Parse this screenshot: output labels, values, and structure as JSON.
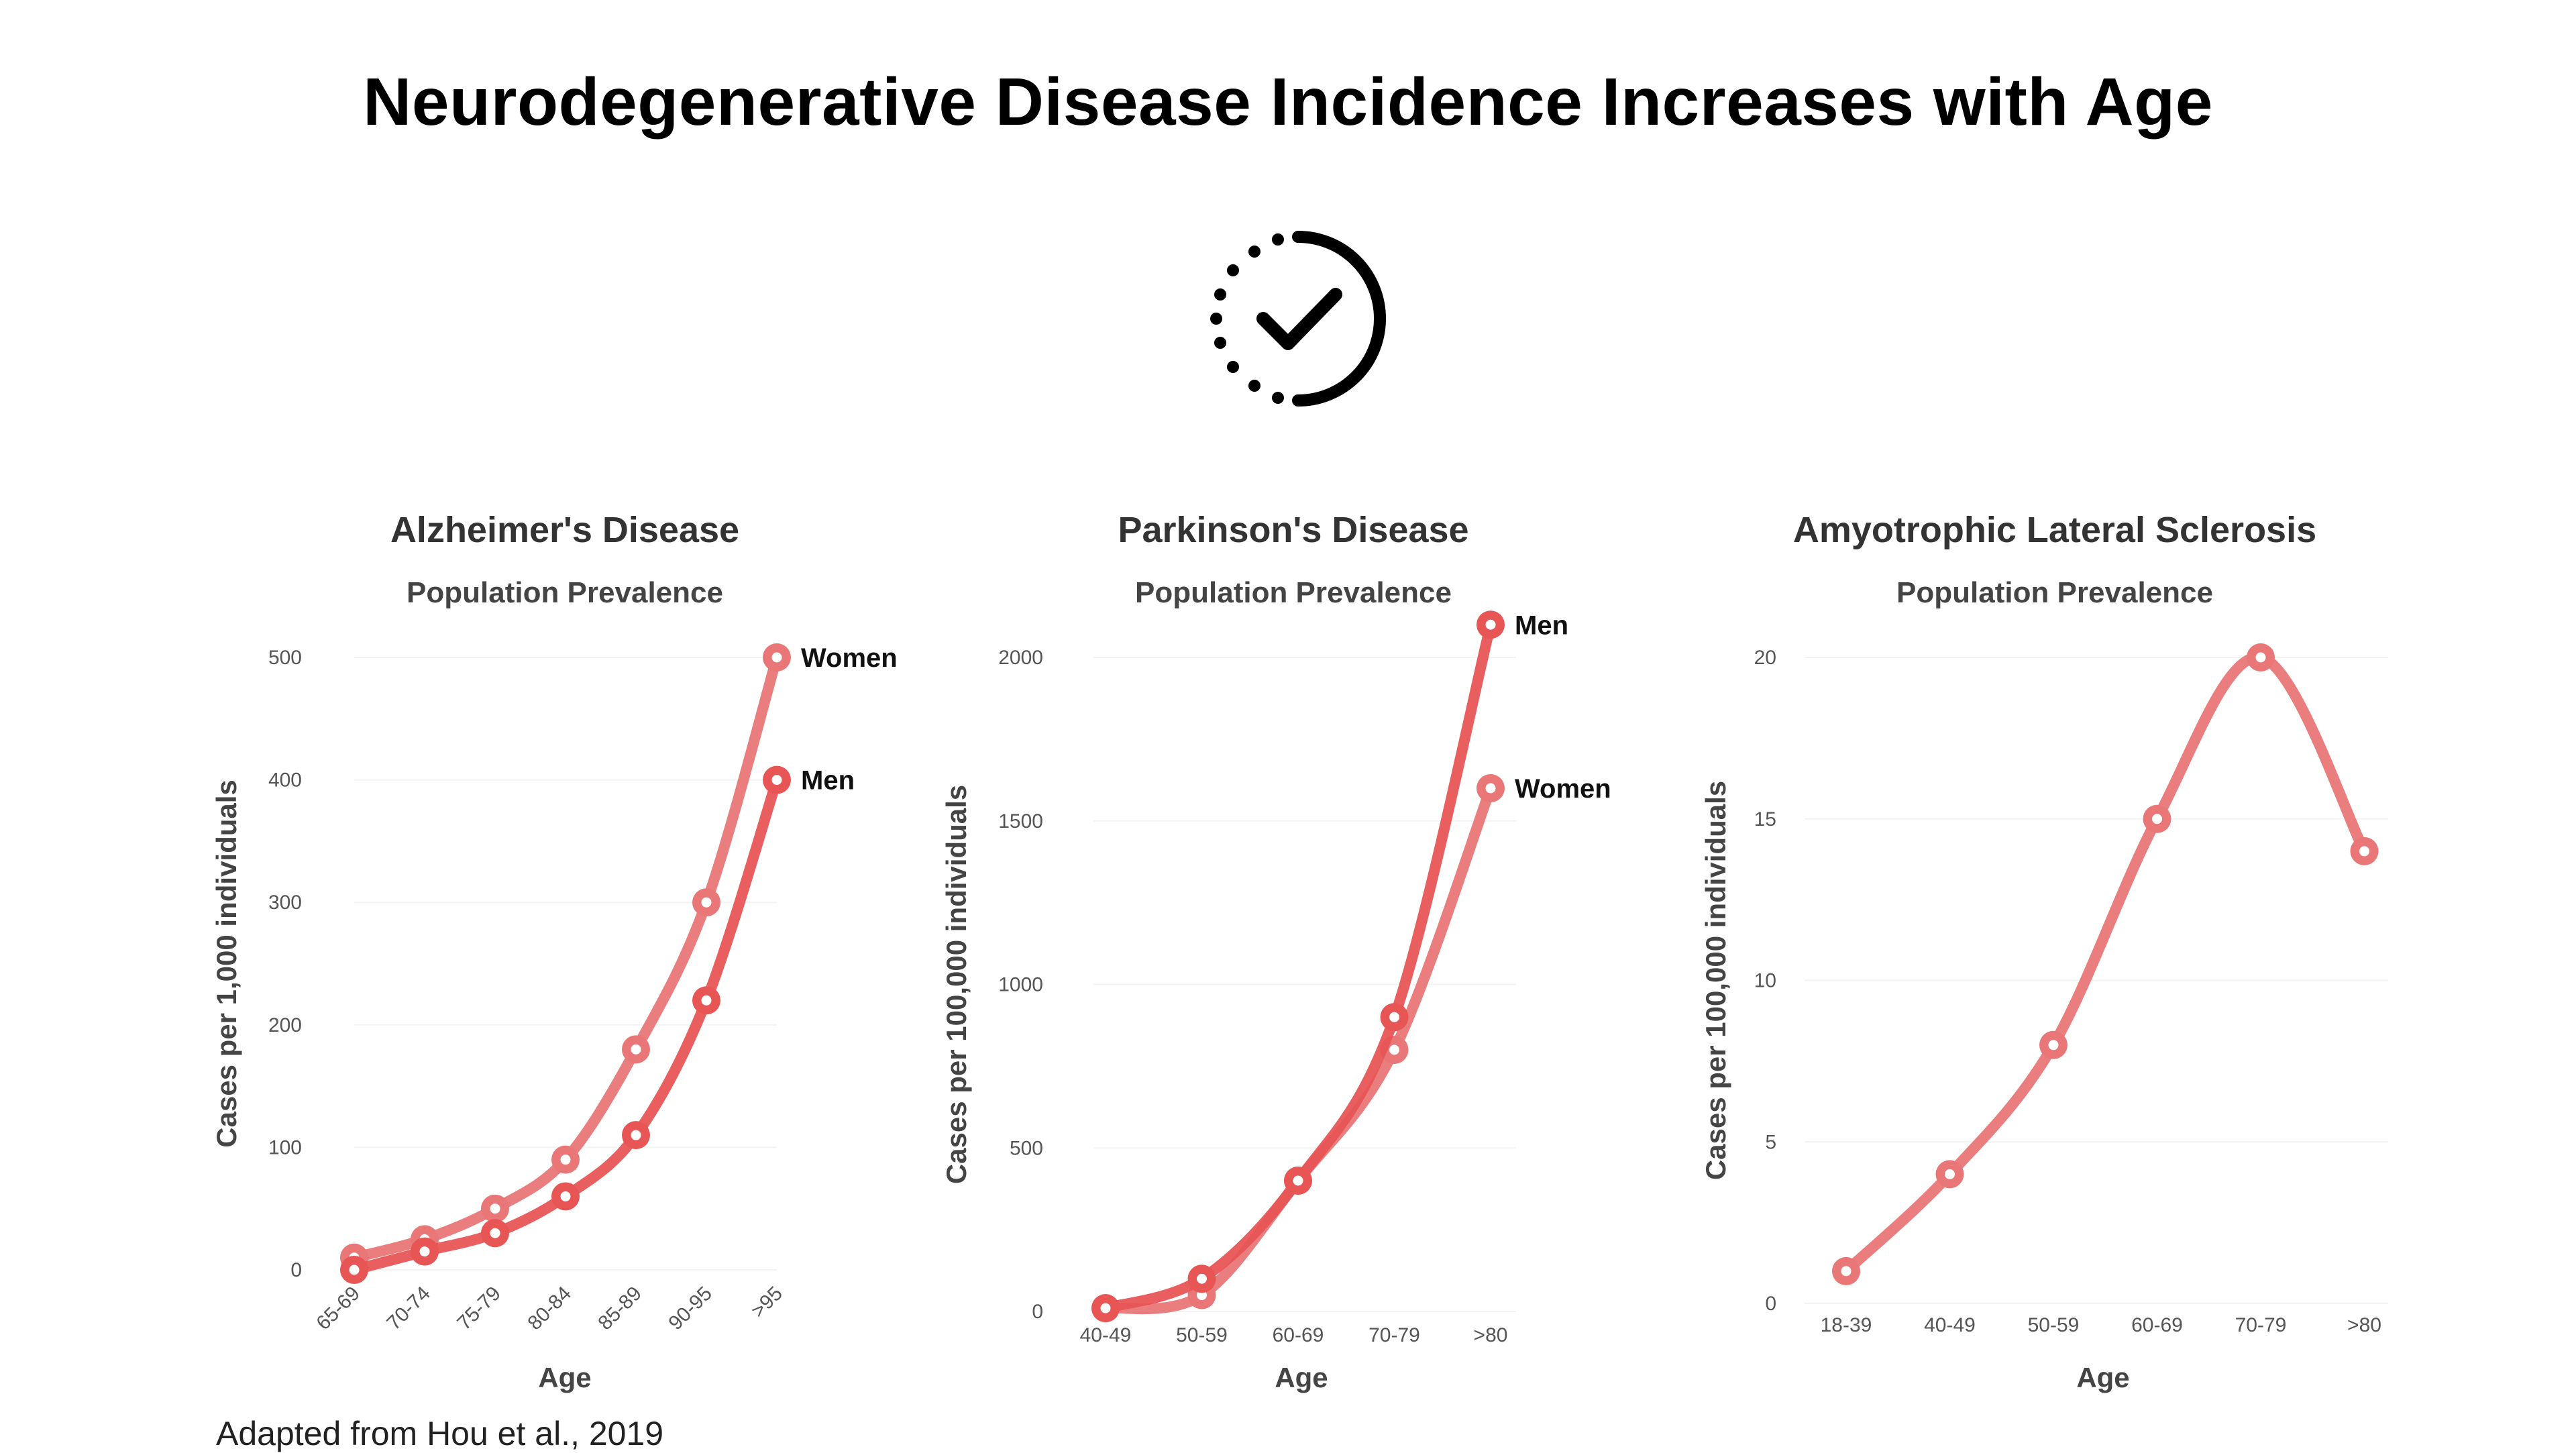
{
  "title": "Neurodegenerative Disease Incidence Increases with Age",
  "icon": "clock-check-icon",
  "source": "Adapted from Hou et al., 2019",
  "colors": {
    "women": "#e97777",
    "men": "#e85555",
    "single": "#e97777",
    "text": "#000000"
  },
  "chart_data": [
    {
      "type": "line",
      "title": "Alzheimer's Disease",
      "subtitle": "Population Prevalence",
      "xlabel": "Age",
      "ylabel": "Cases per 1,000 individuals",
      "categories": [
        "65-69",
        "70-74",
        "75-79",
        "80-84",
        "85-89",
        "90-95",
        ">95"
      ],
      "ylim": [
        0,
        500
      ],
      "yticks": [
        0,
        100,
        200,
        300,
        400,
        500
      ],
      "rotated_x_labels": true,
      "series": [
        {
          "name": "Women",
          "values": [
            10,
            25,
            50,
            90,
            180,
            300,
            500
          ]
        },
        {
          "name": "Men",
          "values": [
            0,
            15,
            30,
            60,
            110,
            220,
            400
          ]
        }
      ]
    },
    {
      "type": "line",
      "title": "Parkinson's Disease",
      "subtitle": "Population Prevalence",
      "xlabel": "Age",
      "ylabel": "Cases per 100,000 individuals",
      "categories": [
        "40-49",
        "50-59",
        "60-69",
        "70-79",
        ">80"
      ],
      "ylim": [
        0,
        2200
      ],
      "yticks": [
        0,
        500,
        1000,
        1500,
        2000
      ],
      "rotated_x_labels": false,
      "series": [
        {
          "name": "Women",
          "values": [
            10,
            50,
            400,
            800,
            1600
          ]
        },
        {
          "name": "Men",
          "values": [
            10,
            100,
            400,
            900,
            2100
          ]
        }
      ]
    },
    {
      "type": "line",
      "title": "Amyotrophic Lateral Sclerosis",
      "subtitle": "Population Prevalence",
      "xlabel": "Age",
      "ylabel": "Cases per 100,000 individuals",
      "categories": [
        "18-39",
        "40-49",
        "50-59",
        "60-69",
        "70-79",
        ">80"
      ],
      "ylim": [
        0,
        20
      ],
      "yticks": [
        0,
        5,
        10,
        15,
        20
      ],
      "rotated_x_labels": false,
      "series": [
        {
          "values": [
            1,
            4,
            8,
            15,
            20,
            14
          ]
        }
      ]
    }
  ]
}
